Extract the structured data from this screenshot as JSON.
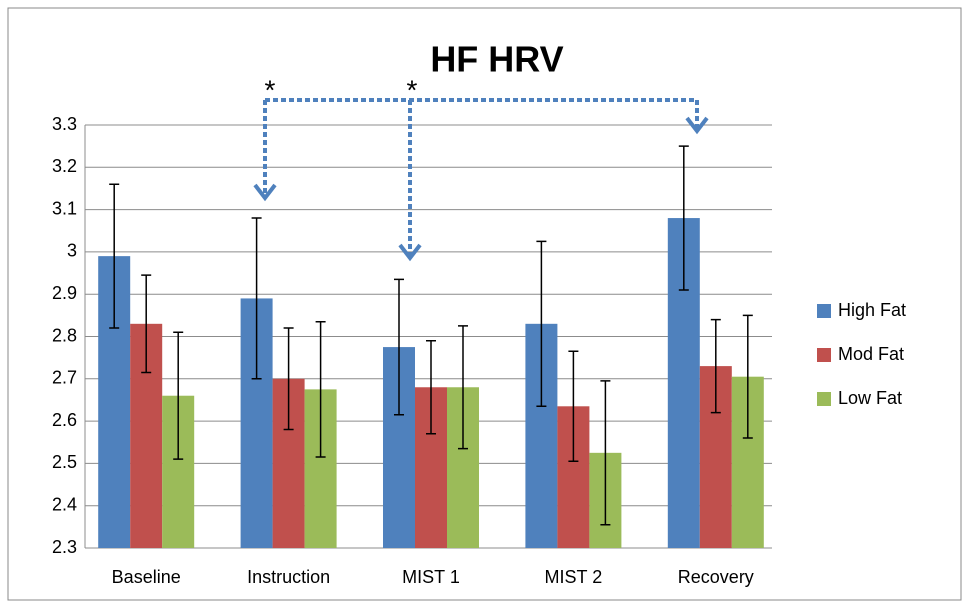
{
  "chart_data": {
    "type": "bar",
    "title": "HF HRV",
    "categories": [
      "Baseline",
      "Instruction",
      "MIST 1",
      "MIST 2",
      "Recovery"
    ],
    "series": [
      {
        "name": "High Fat",
        "color": "#4f81bd",
        "values": [
          2.99,
          2.89,
          2.775,
          2.83,
          3.08
        ],
        "errors": [
          0.17,
          0.19,
          0.16,
          0.195,
          0.17
        ]
      },
      {
        "name": "Mod Fat",
        "color": "#c0504d",
        "values": [
          2.83,
          2.7,
          2.68,
          2.635,
          2.73
        ],
        "errors": [
          0.115,
          0.12,
          0.11,
          0.13,
          0.11
        ]
      },
      {
        "name": "Low Fat",
        "color": "#9bbb59",
        "values": [
          2.66,
          2.675,
          2.68,
          2.525,
          2.705
        ],
        "errors": [
          0.15,
          0.16,
          0.145,
          0.17,
          0.145
        ]
      }
    ],
    "ylim": [
      2.3,
      3.3
    ],
    "yticks": [
      2.3,
      2.4,
      2.5,
      2.6,
      2.7,
      2.8,
      2.9,
      3,
      3.1,
      3.2,
      3.3
    ],
    "grid": true,
    "legend": "right",
    "annotations": [
      "*",
      "*"
    ]
  }
}
